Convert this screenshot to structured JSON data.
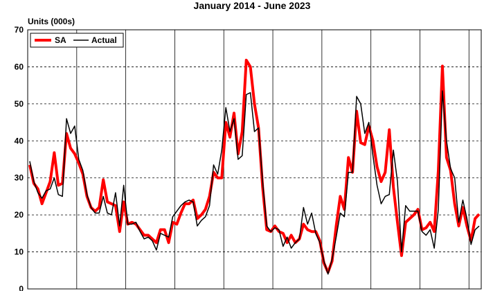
{
  "chart_data": {
    "type": "line",
    "title": "January 2014 - June 2023",
    "ylabel": "Units (000s)",
    "xlabel": "",
    "ylim": [
      0,
      70
    ],
    "yticks": [
      0,
      10,
      20,
      30,
      40,
      50,
      60,
      70
    ],
    "grid": true,
    "legend_position": "top-left",
    "x_start": "2014-01",
    "x_end": "2023-06",
    "series": [
      {
        "name": "SA",
        "color": "#ff0000",
        "values": [
          33.5,
          28.5,
          27.0,
          23.0,
          26.0,
          29.0,
          36.8,
          28.0,
          28.5,
          42.0,
          38.0,
          36.5,
          34.0,
          31.0,
          25.0,
          22.0,
          21.0,
          22.0,
          29.5,
          23.5,
          23.0,
          22.5,
          15.5,
          23.5,
          17.5,
          18.0,
          17.5,
          16.0,
          14.5,
          14.5,
          13.5,
          12.5,
          16.0,
          16.0,
          12.5,
          18.0,
          17.5,
          20.5,
          23.0,
          23.0,
          24.0,
          19.0,
          20.0,
          21.5,
          25.0,
          31.5,
          30.0,
          30.0,
          45.0,
          41.0,
          47.5,
          36.5,
          42.5,
          61.8,
          60.0,
          50.0,
          43.5,
          27.5,
          16.0,
          15.5,
          17.0,
          15.5,
          15.0,
          12.5,
          14.5,
          12.5,
          13.5,
          17.5,
          16.0,
          15.5,
          15.5,
          13.0,
          7.0,
          4.5,
          7.5,
          17.0,
          25.0,
          21.5,
          35.5,
          31.5,
          48.0,
          39.5,
          39.0,
          44.0,
          40.0,
          33.0,
          29.0,
          31.5,
          43.0,
          27.5,
          18.0,
          9.0,
          18.0,
          19.0,
          20.0,
          21.5,
          16.0,
          16.5,
          18.0,
          15.5,
          32.0,
          60.2,
          35.5,
          32.0,
          23.0,
          17.0,
          22.0,
          17.0,
          13.0,
          19.0,
          20.2
        ]
      },
      {
        "name": "Actual",
        "color": "#000000",
        "values": [
          34.5,
          29.0,
          26.0,
          24.5,
          26.5,
          27.0,
          30.0,
          25.5,
          25.0,
          46.0,
          42.0,
          44.0,
          35.0,
          32.0,
          25.5,
          22.0,
          20.5,
          20.5,
          25.0,
          20.5,
          20.0,
          26.0,
          17.0,
          28.0,
          17.5,
          17.5,
          18.0,
          15.5,
          13.5,
          14.0,
          13.0,
          10.5,
          15.0,
          14.5,
          14.0,
          19.5,
          21.0,
          22.5,
          23.5,
          24.0,
          23.5,
          17.0,
          18.5,
          19.5,
          22.5,
          33.5,
          31.0,
          37.5,
          49.0,
          42.5,
          46.0,
          35.0,
          36.0,
          52.5,
          53.0,
          42.5,
          43.5,
          29.0,
          17.0,
          15.5,
          16.5,
          16.0,
          11.5,
          14.0,
          11.0,
          12.5,
          13.5,
          22.0,
          17.5,
          20.5,
          15.0,
          12.5,
          7.5,
          4.0,
          8.0,
          14.0,
          20.5,
          19.5,
          31.5,
          31.5,
          52.0,
          50.0,
          42.0,
          45.0,
          36.0,
          28.0,
          23.0,
          25.0,
          25.5,
          37.5,
          29.0,
          10.0,
          22.5,
          21.0,
          21.0,
          21.0,
          15.5,
          14.5,
          16.0,
          11.0,
          21.5,
          53.5,
          40.0,
          32.5,
          30.0,
          18.0,
          24.0,
          19.0,
          12.0,
          16.0,
          17.0
        ]
      }
    ]
  }
}
